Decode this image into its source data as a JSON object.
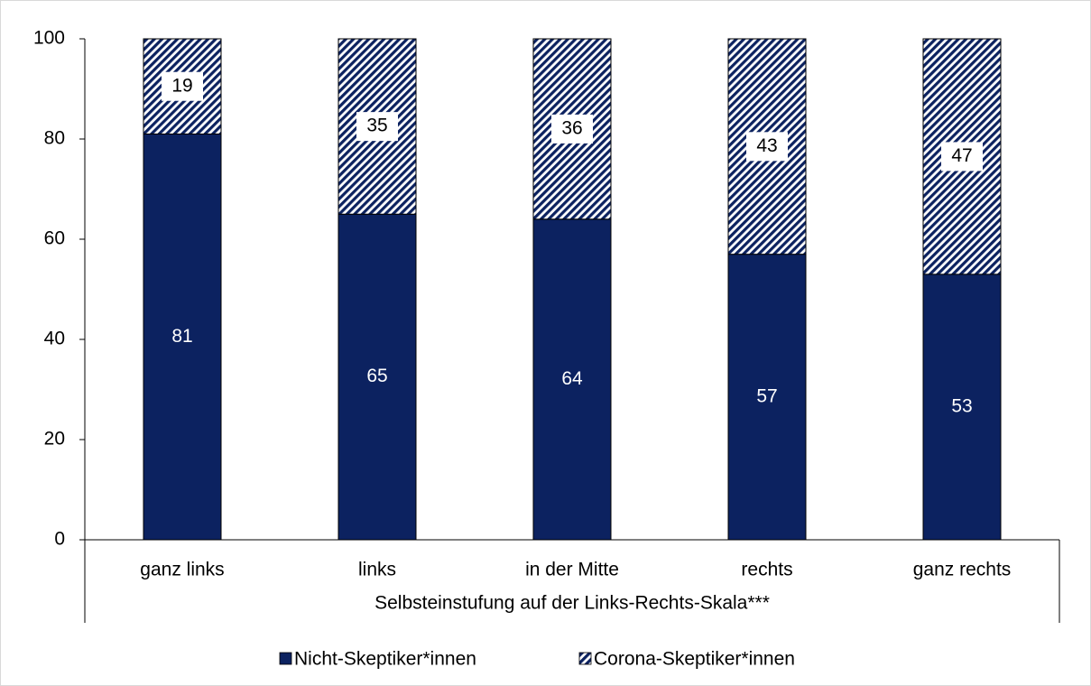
{
  "chart_data": {
    "type": "stacked_bar",
    "x_label": "Selbsteinstufung auf der Links-Rechts-Skala***",
    "categories": [
      "ganz links",
      "links",
      "in der Mitte",
      "rechts",
      "ganz rechts"
    ],
    "series": [
      {
        "name": "Nicht-Skeptiker*innen",
        "color": "#0c2260",
        "hatch": false,
        "values": [
          81,
          65,
          64,
          57,
          53
        ]
      },
      {
        "name": "Corona-Skeptiker*innen",
        "color": "#0c2260",
        "hatch": true,
        "values": [
          19,
          35,
          36,
          43,
          47
        ]
      }
    ],
    "ylim": [
      0,
      100
    ],
    "yticks": [
      0,
      20,
      40,
      60,
      80,
      100
    ],
    "grid": false,
    "legend": "bottom"
  }
}
